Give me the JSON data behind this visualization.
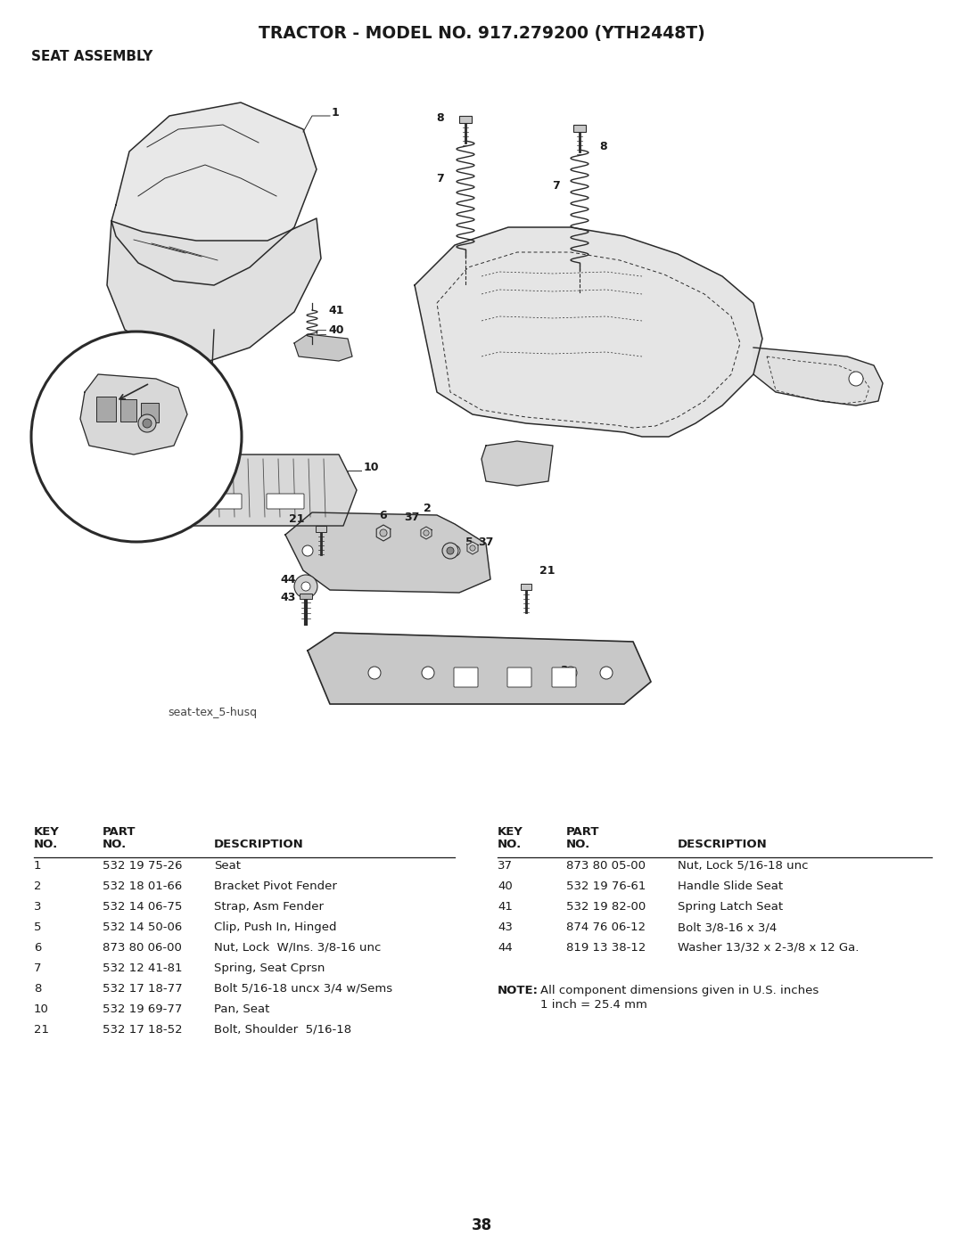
{
  "title": "TRACTOR - MODEL NO. 917.279200 (YTH2448T)",
  "subtitle": "SEAT ASSEMBLY",
  "diagram_label": "seat-tex_5-husq",
  "bg_color": "#ffffff",
  "text_color": "#1a1a1a",
  "page_number": "38",
  "left_parts": [
    [
      "1",
      "532 19 75-26",
      "Seat"
    ],
    [
      "2",
      "532 18 01-66",
      "Bracket Pivot Fender"
    ],
    [
      "3",
      "532 14 06-75",
      "Strap, Asm Fender"
    ],
    [
      "5",
      "532 14 50-06",
      "Clip, Push In, Hinged"
    ],
    [
      "6",
      "873 80 06-00",
      "Nut, Lock  W/Ins. 3/8-16 unc"
    ],
    [
      "7",
      "532 12 41-81",
      "Spring, Seat Cprsn"
    ],
    [
      "8",
      "532 17 18-77",
      "Bolt 5/16-18 uncx 3/4 w/Sems"
    ],
    [
      "10",
      "532 19 69-77",
      "Pan, Seat"
    ],
    [
      "21",
      "532 17 18-52",
      "Bolt, Shoulder  5/16-18"
    ]
  ],
  "right_parts": [
    [
      "37",
      "873 80 05-00",
      "Nut, Lock 5/16-18 unc"
    ],
    [
      "40",
      "532 19 76-61",
      "Handle Slide Seat"
    ],
    [
      "41",
      "532 19 82-00",
      "Spring Latch Seat"
    ],
    [
      "43",
      "874 76 06-12",
      "Bolt 3/8-16 x 3/4"
    ],
    [
      "44",
      "819 13 38-12",
      "Washer 13/32 x 2-3/8 x 12 Ga."
    ]
  ],
  "note_bold": "NOTE:",
  "note_text": "All component dimensions given in U.S. inches",
  "note_text2": "1 inch = 25.4 mm"
}
